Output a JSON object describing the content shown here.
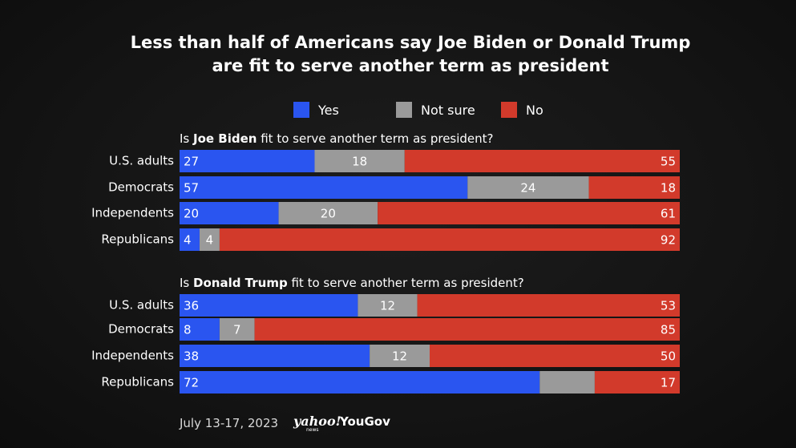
{
  "chart_data": {
    "type": "bar",
    "stacked": true,
    "orientation": "horizontal",
    "title": [
      "Less than half of Americans say Joe Biden or Donald Trump",
      "are fit to serve another term as president"
    ],
    "legend": [
      {
        "name": "Yes",
        "color": "#2a55f0"
      },
      {
        "name": "Not sure",
        "color": "#9a9a9a"
      },
      {
        "name": "No",
        "color": "#d23a2b"
      }
    ],
    "panels": [
      {
        "question_prefix": "Is ",
        "question_bold": "Joe Biden",
        "question_suffix": " fit to serve another term as president?",
        "categories": [
          "U.S. adults",
          "Democrats",
          "Independents",
          "Republicans"
        ],
        "series": [
          {
            "name": "Yes",
            "values": [
              27,
              57,
              20,
              4
            ]
          },
          {
            "name": "Not sure",
            "values": [
              18,
              24,
              20,
              4
            ]
          },
          {
            "name": "No",
            "values": [
              55,
              18,
              61,
              92
            ]
          }
        ]
      },
      {
        "question_prefix": "Is ",
        "question_bold": "Donald Trump",
        "question_suffix": " fit to serve another term as president?",
        "categories": [
          "U.S. adults",
          "Democrats",
          "Independents",
          "Republicans"
        ],
        "series": [
          {
            "name": "Yes",
            "values": [
              36,
              8,
              38,
              72
            ]
          },
          {
            "name": "Not sure",
            "values": [
              12,
              7,
              12,
              11
            ]
          },
          {
            "name": "No",
            "values": [
              53,
              85,
              50,
              17
            ]
          }
        ],
        "hidden_labels": [
          {
            "series": "Not sure",
            "index": 3
          }
        ]
      }
    ],
    "xlim": [
      0,
      100
    ]
  },
  "footer": {
    "date": "July 13-17, 2023",
    "logo_yahoo": "yahoo!",
    "logo_news": "news",
    "logo_yougov": "YouGov"
  }
}
